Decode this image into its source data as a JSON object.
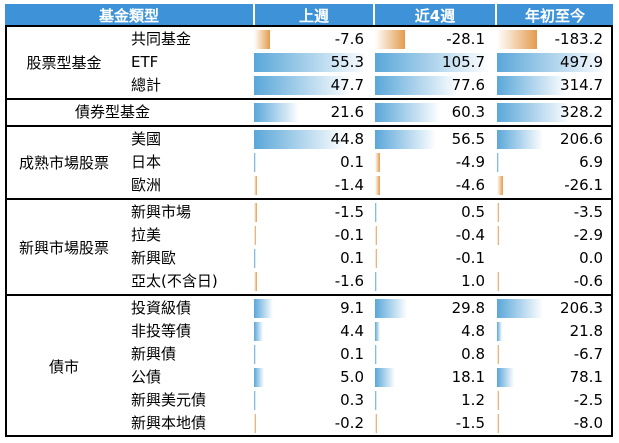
{
  "header": {
    "category": "基金類型",
    "col1": "上週",
    "col2": "近4週",
    "col3": "年初至今"
  },
  "colors": {
    "header_bg": "#3d92d8",
    "positive_bar": "#5aa7d9",
    "negative_bar": "#e39b4d"
  },
  "chart_data": {
    "type": "table",
    "columns": [
      "上週",
      "近4週",
      "年初至今"
    ],
    "groups": [
      {
        "name": "股票型基金",
        "rows": [
          {
            "label": "共同基金",
            "values": [
              -7.6,
              -28.1,
              -183.2
            ]
          },
          {
            "label": "ETF",
            "values": [
              55.3,
              105.7,
              497.9
            ]
          },
          {
            "label": "總計",
            "values": [
              47.7,
              77.6,
              314.7
            ]
          }
        ]
      },
      {
        "name": "",
        "rows": [
          {
            "label": "債券型基金",
            "values": [
              21.6,
              60.3,
              328.2
            ]
          }
        ]
      },
      {
        "name": "成熟市場股票",
        "rows": [
          {
            "label": "美國",
            "values": [
              44.8,
              56.5,
              206.6
            ]
          },
          {
            "label": "日本",
            "values": [
              0.1,
              -4.9,
              6.9
            ]
          },
          {
            "label": "歐洲",
            "values": [
              -1.4,
              -4.6,
              -26.1
            ]
          }
        ]
      },
      {
        "name": "新興市場股票",
        "rows": [
          {
            "label": "新興市場",
            "values": [
              -1.5,
              0.5,
              -3.5
            ]
          },
          {
            "label": "拉美",
            "values": [
              -0.1,
              -0.4,
              -2.9
            ]
          },
          {
            "label": "新興歐",
            "values": [
              0.1,
              -0.1,
              0.0
            ]
          },
          {
            "label": "亞太(不含日)",
            "values": [
              -1.6,
              1.0,
              -0.6
            ]
          }
        ]
      },
      {
        "name": "債市",
        "rows": [
          {
            "label": "投資級債",
            "values": [
              9.1,
              29.8,
              206.3
            ]
          },
          {
            "label": "非投等債",
            "values": [
              4.4,
              4.8,
              21.8
            ]
          },
          {
            "label": "新興債",
            "values": [
              0.1,
              0.8,
              -6.7
            ]
          },
          {
            "label": "公債",
            "values": [
              5.0,
              18.1,
              78.1
            ]
          },
          {
            "label": "新興美元債",
            "values": [
              0.3,
              1.2,
              -2.5
            ]
          },
          {
            "label": "新興本地債",
            "values": [
              -0.2,
              -1.5,
              -8.0
            ]
          }
        ]
      }
    ]
  }
}
